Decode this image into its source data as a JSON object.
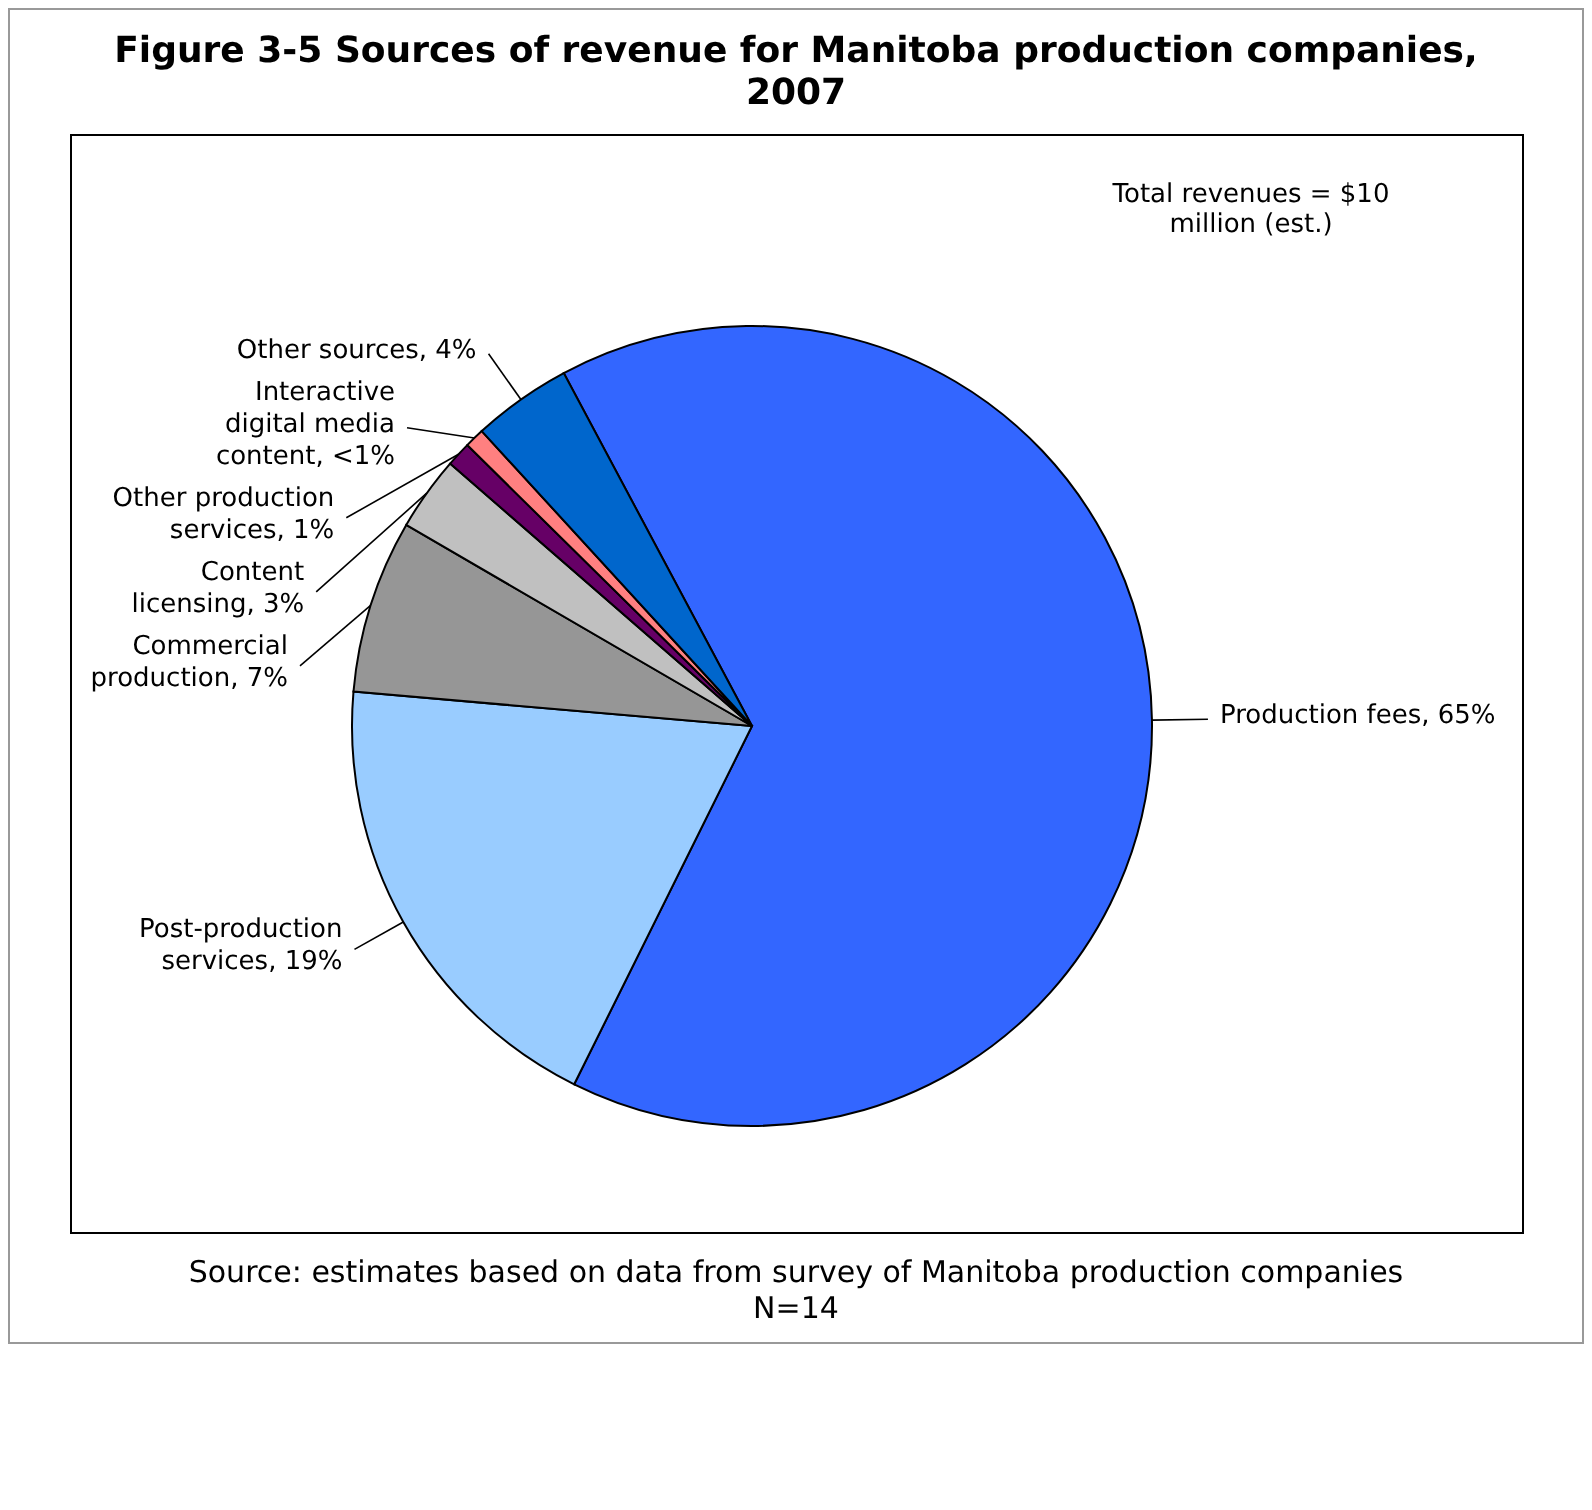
{
  "chart_data": {
    "type": "pie",
    "title": "Figure 3-5 Sources of revenue for Manitoba production companies, 2007",
    "categories": [
      "Production fees",
      "Post-production services",
      "Commercial production",
      "Content licensing",
      "Other production services",
      "Interactive digital media content",
      "Other sources"
    ],
    "values": [
      65,
      19,
      7,
      3,
      1,
      0.8,
      4
    ],
    "value_labels": [
      "65%",
      "19%",
      "7%",
      "3%",
      "1%",
      "<1%",
      "4%"
    ],
    "colors": [
      "#3366ff",
      "#99ccff",
      "#969696",
      "#c0c0c0",
      "#660066",
      "#ff8080",
      "#0066cc"
    ],
    "annotations": [
      "Total revenues = $10 million (est.)",
      "Source: estimates based on data from survey of Manitoba production companies",
      "N=14"
    ]
  }
}
